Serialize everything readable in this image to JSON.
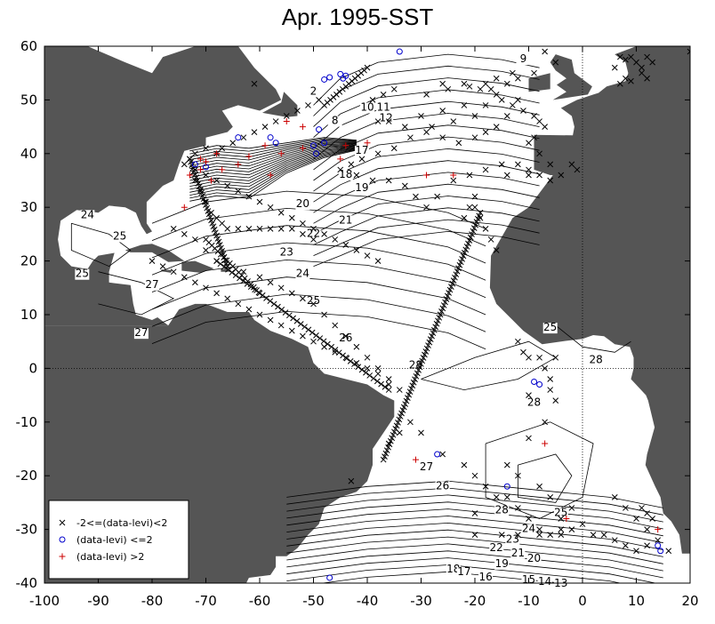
{
  "title": "Apr. 1995-SST",
  "chart_data": {
    "type": "scatter",
    "xlim": [
      -100,
      20
    ],
    "ylim": [
      -40,
      60
    ],
    "x_ticks": [
      "-100",
      "-90",
      "-80",
      "-70",
      "-60",
      "-50",
      "-40",
      "-30",
      "-20",
      "-10",
      "0",
      "10",
      "20"
    ],
    "y_ticks": [
      "-40",
      "-30",
      "-20",
      "-10",
      "0",
      "10",
      "20",
      "30",
      "40",
      "50",
      "60"
    ],
    "zero_lines": true,
    "legend_position": "bottom-left",
    "legend": [
      {
        "marker": "x",
        "label": "-2<=(data-levi)<2",
        "color": "#000000"
      },
      {
        "marker": "o",
        "label": "(data-levi) <=2",
        "color": "#0000cc"
      },
      {
        "marker": "+",
        "label": "(data-levi) >2",
        "color": "#cc0000"
      }
    ],
    "colors": {
      "land": "#555555",
      "ocean": "#ffffff",
      "contour": "#000000",
      "x": "#000000",
      "o": "#0000cc",
      "plus": "#cc0000"
    },
    "contour_labels": [
      {
        "t": "9",
        "lon": -11,
        "lat": 57
      },
      {
        "t": "2",
        "lon": -50,
        "lat": 51
      },
      {
        "t": "8",
        "lon": -46,
        "lat": 45.5
      },
      {
        "t": "10",
        "lon": -40,
        "lat": 48
      },
      {
        "t": "11",
        "lon": -37,
        "lat": 48
      },
      {
        "t": "12",
        "lon": -36.5,
        "lat": 46
      },
      {
        "t": "17",
        "lon": -41,
        "lat": 40
      },
      {
        "t": "18",
        "lon": -44,
        "lat": 35.5
      },
      {
        "t": "19",
        "lon": -41,
        "lat": 33
      },
      {
        "t": "20",
        "lon": -52,
        "lat": 30
      },
      {
        "t": "21",
        "lon": -44,
        "lat": 27
      },
      {
        "t": "22",
        "lon": -50,
        "lat": 24.5
      },
      {
        "t": "23",
        "lon": -55,
        "lat": 21
      },
      {
        "t": "24",
        "lon": -52,
        "lat": 17
      },
      {
        "t": "25",
        "lon": -50,
        "lat": 12
      },
      {
        "t": "26",
        "lon": -44,
        "lat": 5
      },
      {
        "t": "28",
        "lon": -31,
        "lat": 0
      },
      {
        "t": "24",
        "lon": -92,
        "lat": 28
      },
      {
        "t": "25",
        "lon": -86,
        "lat": 24
      },
      {
        "t": "25",
        "lon": -93,
        "lat": 17
      },
      {
        "t": "27",
        "lon": -80,
        "lat": 15
      },
      {
        "t": "27",
        "lon": -82,
        "lat": 6
      },
      {
        "t": "25",
        "lon": -6,
        "lat": 7
      },
      {
        "t": "28",
        "lon": 2.5,
        "lat": 1
      },
      {
        "t": "28",
        "lon": -9,
        "lat": -7
      },
      {
        "t": "27",
        "lon": -29,
        "lat": -19
      },
      {
        "t": "26",
        "lon": -26,
        "lat": -22.5
      },
      {
        "t": "28",
        "lon": -15,
        "lat": -27
      },
      {
        "t": "25",
        "lon": -4,
        "lat": -27.5
      },
      {
        "t": "24",
        "lon": -10,
        "lat": -30.5
      },
      {
        "t": "23",
        "lon": -13,
        "lat": -32.5
      },
      {
        "t": "22",
        "lon": -16,
        "lat": -34
      },
      {
        "t": "21",
        "lon": -12,
        "lat": -35
      },
      {
        "t": "20",
        "lon": -9,
        "lat": -36
      },
      {
        "t": "19",
        "lon": -15,
        "lat": -37
      },
      {
        "t": "18",
        "lon": -24,
        "lat": -38
      },
      {
        "t": "17",
        "lon": -22,
        "lat": -38.5
      },
      {
        "t": "16",
        "lon": -18,
        "lat": -39.5
      },
      {
        "t": "15",
        "lon": -10,
        "lat": -40
      },
      {
        "t": "14",
        "lon": -7,
        "lat": -40.3
      },
      {
        "t": "13",
        "lon": -4,
        "lat": -40.7
      }
    ],
    "o_points": [
      [
        -44,
        54.5
      ],
      [
        -45,
        54.8
      ],
      [
        -47,
        54.2
      ],
      [
        -48,
        53.8
      ],
      [
        -44.5,
        54
      ],
      [
        -34,
        59
      ],
      [
        -64,
        43
      ],
      [
        -58,
        43
      ],
      [
        -57,
        42
      ],
      [
        -49,
        44.5
      ],
      [
        -49.5,
        40
      ],
      [
        -48,
        42
      ],
      [
        -50,
        41.5
      ],
      [
        -72,
        38
      ],
      [
        -70,
        37.5
      ],
      [
        -27,
        -16
      ],
      [
        -14,
        -22
      ],
      [
        -47,
        -39
      ],
      [
        -9,
        -2.5
      ],
      [
        -8,
        -3
      ],
      [
        14,
        -33
      ],
      [
        14.5,
        -34
      ]
    ],
    "plus_points": [
      [
        -55,
        46
      ],
      [
        -52,
        45
      ],
      [
        -59,
        41.5
      ],
      [
        -56,
        40
      ],
      [
        -62,
        39.5
      ],
      [
        -64,
        38
      ],
      [
        -67,
        37
      ],
      [
        -70,
        38.5
      ],
      [
        -71,
        37
      ],
      [
        -73,
        36
      ],
      [
        -69,
        35
      ],
      [
        -71,
        39
      ],
      [
        -68,
        40
      ],
      [
        -74,
        30
      ],
      [
        -58,
        36
      ],
      [
        -52,
        41
      ],
      [
        -45,
        39
      ],
      [
        -44,
        41.5
      ],
      [
        -40,
        42
      ],
      [
        -29,
        36
      ],
      [
        -24,
        36
      ],
      [
        -31,
        -17
      ],
      [
        -7,
        -14
      ],
      [
        -3,
        -28
      ],
      [
        14,
        -30
      ]
    ],
    "x_points": [
      [
        -61,
        53
      ],
      [
        -39,
        50
      ],
      [
        -37,
        51
      ],
      [
        -35,
        52
      ],
      [
        -29,
        51
      ],
      [
        -26,
        53
      ],
      [
        -25,
        52
      ],
      [
        -22,
        53
      ],
      [
        -21,
        52.5
      ],
      [
        -19,
        52
      ],
      [
        -18,
        53
      ],
      [
        -16,
        54
      ],
      [
        -13,
        55
      ],
      [
        -12,
        54
      ],
      [
        -14,
        53
      ],
      [
        -9,
        55
      ],
      [
        -7,
        59
      ],
      [
        -5,
        57
      ],
      [
        7,
        58
      ],
      [
        8,
        57.5
      ],
      [
        9,
        58
      ],
      [
        10,
        57
      ],
      [
        11,
        56
      ],
      [
        12,
        58
      ],
      [
        13,
        57
      ],
      [
        6,
        56
      ],
      [
        8,
        54
      ],
      [
        9,
        53.5
      ],
      [
        11,
        55
      ],
      [
        12,
        54
      ],
      [
        7,
        53
      ],
      [
        20,
        59
      ],
      [
        -17,
        52
      ],
      [
        -16,
        51
      ],
      [
        -15,
        50
      ],
      [
        -13,
        49
      ],
      [
        -11,
        48
      ],
      [
        -9,
        47
      ],
      [
        -8,
        46
      ],
      [
        -7,
        45
      ],
      [
        -9,
        43
      ],
      [
        -10,
        42
      ],
      [
        -8,
        40
      ],
      [
        -6,
        38
      ],
      [
        -4,
        36
      ],
      [
        -2,
        38
      ],
      [
        -1,
        37
      ],
      [
        -12,
        50
      ],
      [
        -14,
        47
      ],
      [
        -16,
        45
      ],
      [
        -18,
        44
      ],
      [
        -20,
        43
      ],
      [
        -23,
        42
      ],
      [
        -26,
        43
      ],
      [
        -29,
        44
      ],
      [
        -33,
        45
      ],
      [
        -36,
        46
      ],
      [
        -38,
        46
      ],
      [
        -30,
        47
      ],
      [
        -26,
        48
      ],
      [
        -22,
        49
      ],
      [
        -18,
        49
      ],
      [
        -20,
        47
      ],
      [
        -24,
        46
      ],
      [
        -28,
        45
      ],
      [
        -32,
        43
      ],
      [
        -35,
        41
      ],
      [
        -38,
        40
      ],
      [
        -41,
        39
      ],
      [
        -43,
        38
      ],
      [
        -45,
        37
      ],
      [
        -42,
        36
      ],
      [
        -39,
        35
      ],
      [
        -36,
        35
      ],
      [
        -33,
        34
      ],
      [
        -31,
        32
      ],
      [
        -29,
        30
      ],
      [
        -27,
        32
      ],
      [
        -24,
        35
      ],
      [
        -21,
        36
      ],
      [
        -18,
        37
      ],
      [
        -15,
        38
      ],
      [
        -12,
        38
      ],
      [
        -10,
        37
      ],
      [
        -8,
        36
      ],
      [
        -6,
        35
      ],
      [
        -49,
        50
      ],
      [
        -51,
        49
      ],
      [
        -53,
        48
      ],
      [
        -55,
        47
      ],
      [
        -57,
        46
      ],
      [
        -59,
        45
      ],
      [
        -61,
        44
      ],
      [
        -63,
        43
      ],
      [
        -65,
        42
      ],
      [
        -67,
        41
      ],
      [
        -68,
        40
      ],
      [
        -70,
        41
      ],
      [
        -72,
        40
      ],
      [
        -73,
        39
      ],
      [
        -74,
        38
      ],
      [
        -72,
        37
      ],
      [
        -70,
        36
      ],
      [
        -68,
        35
      ],
      [
        -66,
        34
      ],
      [
        -64,
        33
      ],
      [
        -62,
        32
      ],
      [
        -60,
        31
      ],
      [
        -58,
        30
      ],
      [
        -56,
        29
      ],
      [
        -54,
        28
      ],
      [
        -52,
        27
      ],
      [
        -50,
        26
      ],
      [
        -48,
        25
      ],
      [
        -46,
        24
      ],
      [
        -44,
        23
      ],
      [
        -42,
        22
      ],
      [
        -40,
        21
      ],
      [
        -38,
        20
      ],
      [
        -72,
        35
      ],
      [
        -71,
        33
      ],
      [
        -70,
        31
      ],
      [
        -69,
        29
      ],
      [
        -68,
        28
      ],
      [
        -67,
        27
      ],
      [
        -66,
        26
      ],
      [
        -64,
        26
      ],
      [
        -62,
        26
      ],
      [
        -60,
        26
      ],
      [
        -58,
        26
      ],
      [
        -56,
        26
      ],
      [
        -54,
        26
      ],
      [
        -52,
        25
      ],
      [
        -50,
        24
      ],
      [
        -76,
        26
      ],
      [
        -74,
        25
      ],
      [
        -72,
        24
      ],
      [
        -70,
        22
      ],
      [
        -68,
        20
      ],
      [
        -66,
        19
      ],
      [
        -63,
        18
      ],
      [
        -60,
        17
      ],
      [
        -58,
        16
      ],
      [
        -56,
        15
      ],
      [
        -54,
        14
      ],
      [
        -52,
        13
      ],
      [
        -50,
        12
      ],
      [
        -48,
        10
      ],
      [
        -46,
        8
      ],
      [
        -44,
        6
      ],
      [
        -42,
        4
      ],
      [
        -40,
        2
      ],
      [
        -38,
        0
      ],
      [
        -36,
        -2
      ],
      [
        -34,
        -4
      ],
      [
        -80,
        20
      ],
      [
        -78,
        19
      ],
      [
        -76,
        18
      ],
      [
        -74,
        17
      ],
      [
        -72,
        16
      ],
      [
        -70,
        15
      ],
      [
        -68,
        14
      ],
      [
        -66,
        13
      ],
      [
        -64,
        12
      ],
      [
        -62,
        11
      ],
      [
        -60,
        10
      ],
      [
        -58,
        9
      ],
      [
        -56,
        8
      ],
      [
        -54,
        7
      ],
      [
        -52,
        6
      ],
      [
        -50,
        5
      ],
      [
        -48,
        4
      ],
      [
        -46,
        3
      ],
      [
        -44,
        2
      ],
      [
        -42,
        1
      ],
      [
        -40,
        0
      ],
      [
        -38,
        -1
      ],
      [
        -36,
        -3
      ],
      [
        -20,
        30
      ],
      [
        -19,
        28
      ],
      [
        -18,
        26
      ],
      [
        -17,
        24
      ],
      [
        -16,
        22
      ],
      [
        -20,
        32
      ],
      [
        -21,
        30
      ],
      [
        -22,
        28
      ],
      [
        -14,
        36
      ],
      [
        -10,
        36
      ],
      [
        -36,
        -14
      ],
      [
        -34,
        -12
      ],
      [
        -32,
        -10
      ],
      [
        -30,
        -12
      ],
      [
        -26,
        -16
      ],
      [
        -22,
        -18
      ],
      [
        -20,
        -20
      ],
      [
        -18,
        -22
      ],
      [
        -16,
        -24
      ],
      [
        -14,
        -24
      ],
      [
        -12,
        -26
      ],
      [
        -10,
        -28
      ],
      [
        -8,
        -30
      ],
      [
        -6,
        -31
      ],
      [
        -4,
        -30
      ],
      [
        -2,
        -30
      ],
      [
        0,
        -29
      ],
      [
        2,
        -31
      ],
      [
        4,
        -31
      ],
      [
        6,
        -32
      ],
      [
        8,
        -33
      ],
      [
        10,
        -34
      ],
      [
        12,
        -33
      ],
      [
        14,
        -32
      ],
      [
        16,
        -34
      ],
      [
        -43,
        -21
      ],
      [
        -10,
        -13
      ],
      [
        -6,
        -4
      ],
      [
        -5,
        -6
      ],
      [
        -7,
        -10
      ],
      [
        -20,
        -27
      ],
      [
        -20,
        -31
      ],
      [
        -15,
        -31
      ],
      [
        -12,
        -31
      ],
      [
        -8,
        -31
      ],
      [
        -4,
        -31
      ],
      [
        6,
        -24
      ],
      [
        8,
        -26
      ],
      [
        10,
        -28
      ],
      [
        12,
        -30
      ],
      [
        13,
        -28
      ],
      [
        12,
        -27
      ],
      [
        11,
        -26
      ],
      [
        -2,
        -26
      ],
      [
        -4,
        -28
      ],
      [
        -6,
        -24
      ],
      [
        -8,
        -22
      ],
      [
        -12,
        -20
      ],
      [
        -14,
        -18
      ],
      [
        -10,
        -5
      ],
      [
        -8,
        2
      ],
      [
        -7,
        0
      ],
      [
        -6,
        -2
      ],
      [
        -12,
        5
      ],
      [
        -11,
        3
      ],
      [
        -10,
        2
      ],
      [
        -5,
        2
      ]
    ],
    "tracks": [
      {
        "from": [
          -37,
          -17
        ],
        "to": [
          -19,
          29
        ],
        "n": 80
      },
      {
        "from": [
          -73,
          39
        ],
        "to": [
          -66,
          19
        ],
        "n": 35
      },
      {
        "from": [
          -68,
          20
        ],
        "to": [
          -36,
          -4
        ],
        "n": 45
      },
      {
        "from": [
          -70,
          24
        ],
        "to": [
          -60,
          14
        ],
        "n": 18
      },
      {
        "from": [
          -48,
          49
        ],
        "to": [
          -40,
          56
        ],
        "n": 14
      }
    ]
  }
}
